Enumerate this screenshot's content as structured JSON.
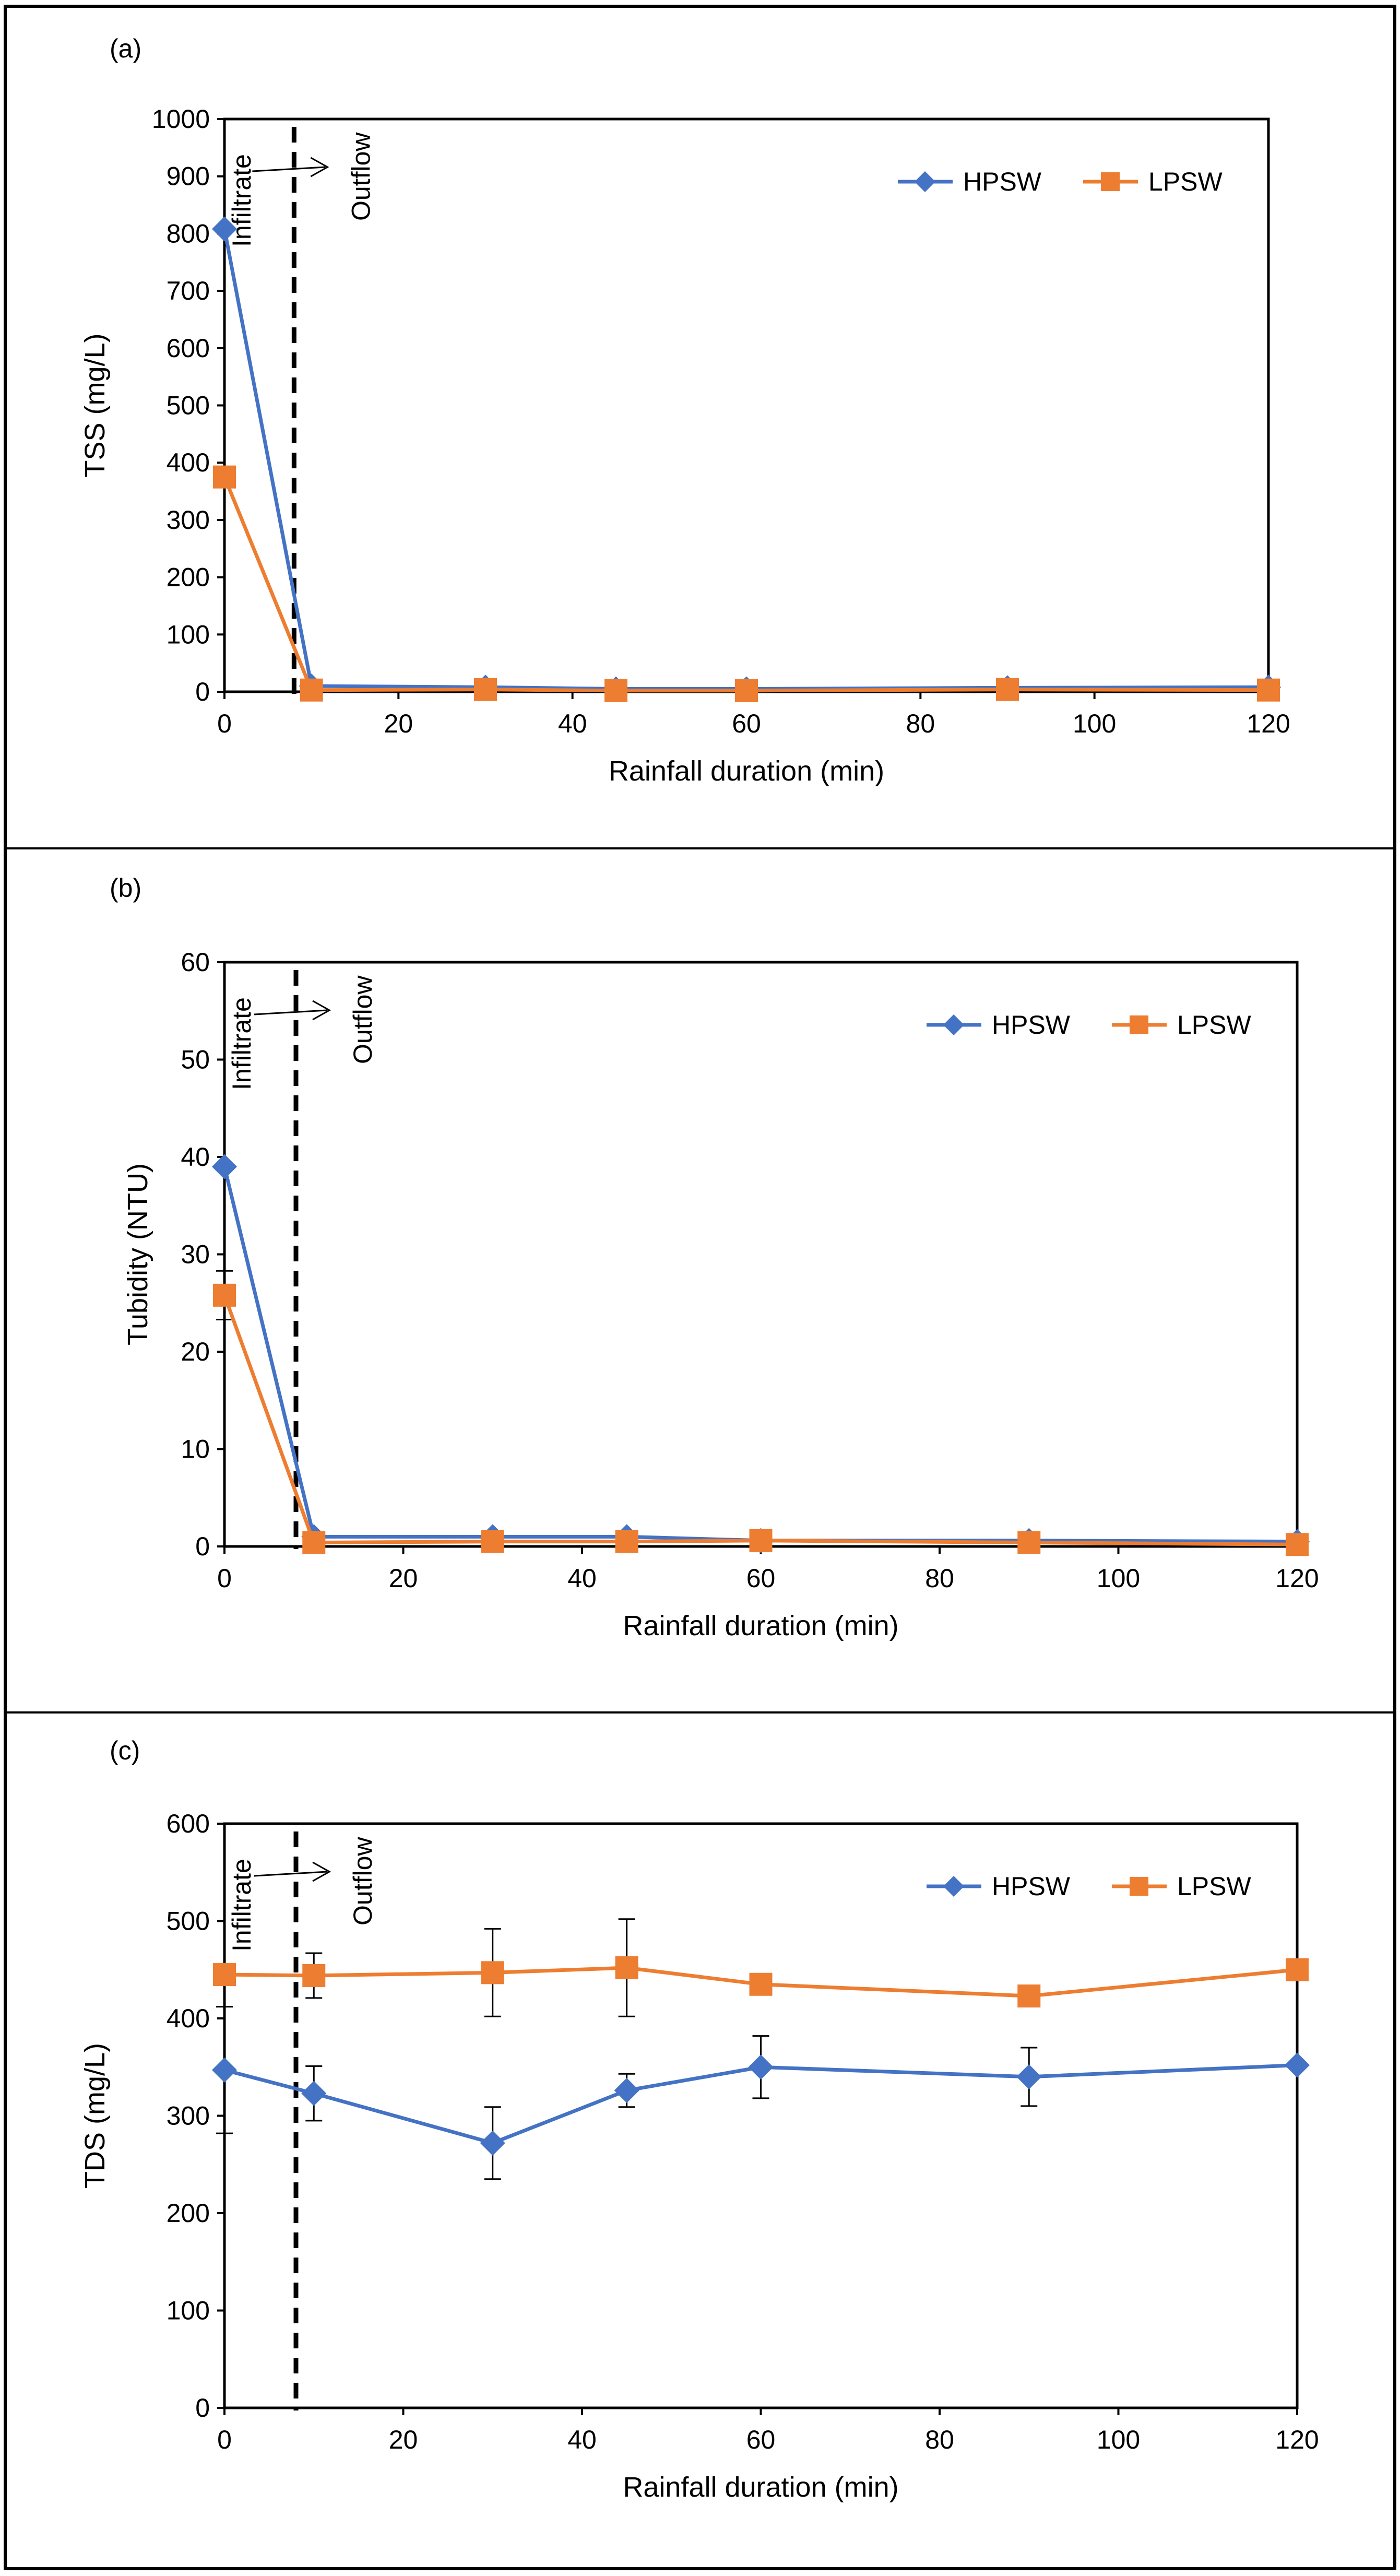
{
  "colors": {
    "hpsw": "#4472C4",
    "lpsw": "#ED7D31",
    "axis": "#000000",
    "error": "#000000",
    "divider": "#000000"
  },
  "chart_data": [
    {
      "panel_label": "(a)",
      "type": "line",
      "xlabel": "Rainfall duration (min)",
      "ylabel": "TSS (mg/L)",
      "xlim": [
        0,
        120
      ],
      "ylim": [
        0,
        1000
      ],
      "xticks": [
        0,
        20,
        40,
        60,
        80,
        100,
        120
      ],
      "yticks": [
        0,
        100,
        200,
        300,
        400,
        500,
        600,
        700,
        800,
        900,
        1000
      ],
      "grid": false,
      "legend_position": "top-right",
      "divider_x": 8,
      "annotations": {
        "left": "Infiltrate",
        "right": "Outflow"
      },
      "series": [
        {
          "name": "HPSW",
          "marker": "diamond",
          "x": [
            0,
            10,
            30,
            45,
            60,
            90,
            120
          ],
          "y": [
            808,
            10,
            8,
            5,
            5,
            7,
            8
          ],
          "err": [
            0,
            0,
            0,
            0,
            0,
            0,
            0
          ]
        },
        {
          "name": "LPSW",
          "marker": "square",
          "x": [
            0,
            10,
            30,
            45,
            60,
            90,
            120
          ],
          "y": [
            375,
            3,
            4,
            2,
            2,
            4,
            3
          ],
          "err": [
            0,
            0,
            0,
            0,
            0,
            0,
            0
          ]
        }
      ]
    },
    {
      "panel_label": "(b)",
      "type": "line",
      "xlabel": "Rainfall duration (min)",
      "ylabel": "Tubidity (NTU)",
      "xlim": [
        0,
        120
      ],
      "ylim": [
        0,
        60
      ],
      "xticks": [
        0,
        20,
        40,
        60,
        80,
        100,
        120
      ],
      "yticks": [
        0,
        10,
        20,
        30,
        40,
        50,
        60
      ],
      "grid": false,
      "legend_position": "top-right",
      "divider_x": 8,
      "annotations": {
        "left": "Infiltrate",
        "right": "Outflow"
      },
      "series": [
        {
          "name": "HPSW",
          "marker": "diamond",
          "x": [
            0,
            10,
            30,
            45,
            60,
            90,
            120
          ],
          "y": [
            39,
            1,
            1,
            1,
            0.6,
            0.6,
            0.5
          ],
          "err": [
            0,
            0,
            0,
            0,
            0,
            0,
            0
          ]
        },
        {
          "name": "LPSW",
          "marker": "square",
          "x": [
            0,
            10,
            30,
            45,
            60,
            90,
            120
          ],
          "y": [
            25.8,
            0.4,
            0.5,
            0.5,
            0.6,
            0.4,
            0.2
          ],
          "err": [
            2.5,
            0,
            0,
            0,
            0,
            0,
            0
          ]
        }
      ]
    },
    {
      "panel_label": "(c)",
      "type": "line",
      "xlabel": "Rainfall duration (min)",
      "ylabel": "TDS (mg/L)",
      "xlim": [
        0,
        120
      ],
      "ylim": [
        0,
        600
      ],
      "xticks": [
        0,
        20,
        40,
        60,
        80,
        100,
        120
      ],
      "yticks": [
        0,
        100,
        200,
        300,
        400,
        500,
        600
      ],
      "grid": false,
      "legend_position": "top-right",
      "divider_x": 8,
      "annotations": {
        "left": "Infiltrate",
        "right": "Outflow"
      },
      "series": [
        {
          "name": "HPSW",
          "marker": "diamond",
          "x": [
            0,
            10,
            30,
            45,
            60,
            90,
            120
          ],
          "y": [
            347,
            323,
            272,
            326,
            350,
            340,
            352
          ],
          "err": [
            65,
            28,
            37,
            17,
            32,
            30,
            0
          ]
        },
        {
          "name": "LPSW",
          "marker": "square",
          "x": [
            0,
            10,
            30,
            45,
            60,
            90,
            120
          ],
          "y": [
            445,
            444,
            447,
            452,
            435,
            423,
            450
          ],
          "err": [
            0,
            23,
            45,
            50,
            0,
            0,
            0
          ]
        }
      ]
    }
  ]
}
